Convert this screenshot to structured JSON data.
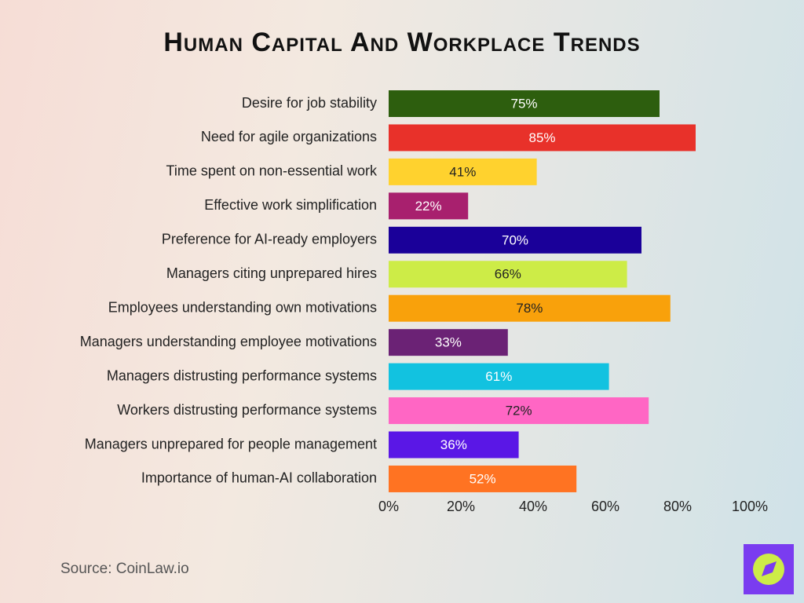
{
  "chart_data": {
    "type": "hbar",
    "title": "Human Capital And Workplace Trends",
    "source": "Source: CoinLaw.io",
    "categories": [
      "Desire for job stability",
      "Need for agile organizations",
      "Time spent on non-essential work",
      "Effective work simplification",
      "Preference for AI-ready employers",
      "Managers citing unprepared hires",
      "Employees understanding own motivations",
      "Managers understanding employee motivations",
      "Managers distrusting performance systems",
      "Workers distrusting performance systems",
      "Managers unprepared for people management",
      "Importance of human-AI collaboration"
    ],
    "values": [
      75,
      85,
      41,
      22,
      70,
      66,
      78,
      33,
      61,
      72,
      36,
      52
    ],
    "value_labels": [
      "75%",
      "85%",
      "41%",
      "22%",
      "70%",
      "66%",
      "78%",
      "33%",
      "61%",
      "72%",
      "36%",
      "52%"
    ],
    "colors": [
      "#2d5e0e",
      "#e8312a",
      "#ffd22e",
      "#a8206e",
      "#1a0099",
      "#cdec47",
      "#f9a10b",
      "#6b2275",
      "#12c2e0",
      "#ff66c4",
      "#5a17e6",
      "#ff7322"
    ],
    "xlim": [
      0,
      100
    ],
    "xticks": [
      {
        "value": 0,
        "label": "0%"
      },
      {
        "value": 20,
        "label": "20%"
      },
      {
        "value": 40,
        "label": "40%"
      },
      {
        "value": 60,
        "label": "60%"
      },
      {
        "value": 80,
        "label": "80%"
      },
      {
        "value": 100,
        "label": "100%"
      }
    ],
    "grid": false
  }
}
